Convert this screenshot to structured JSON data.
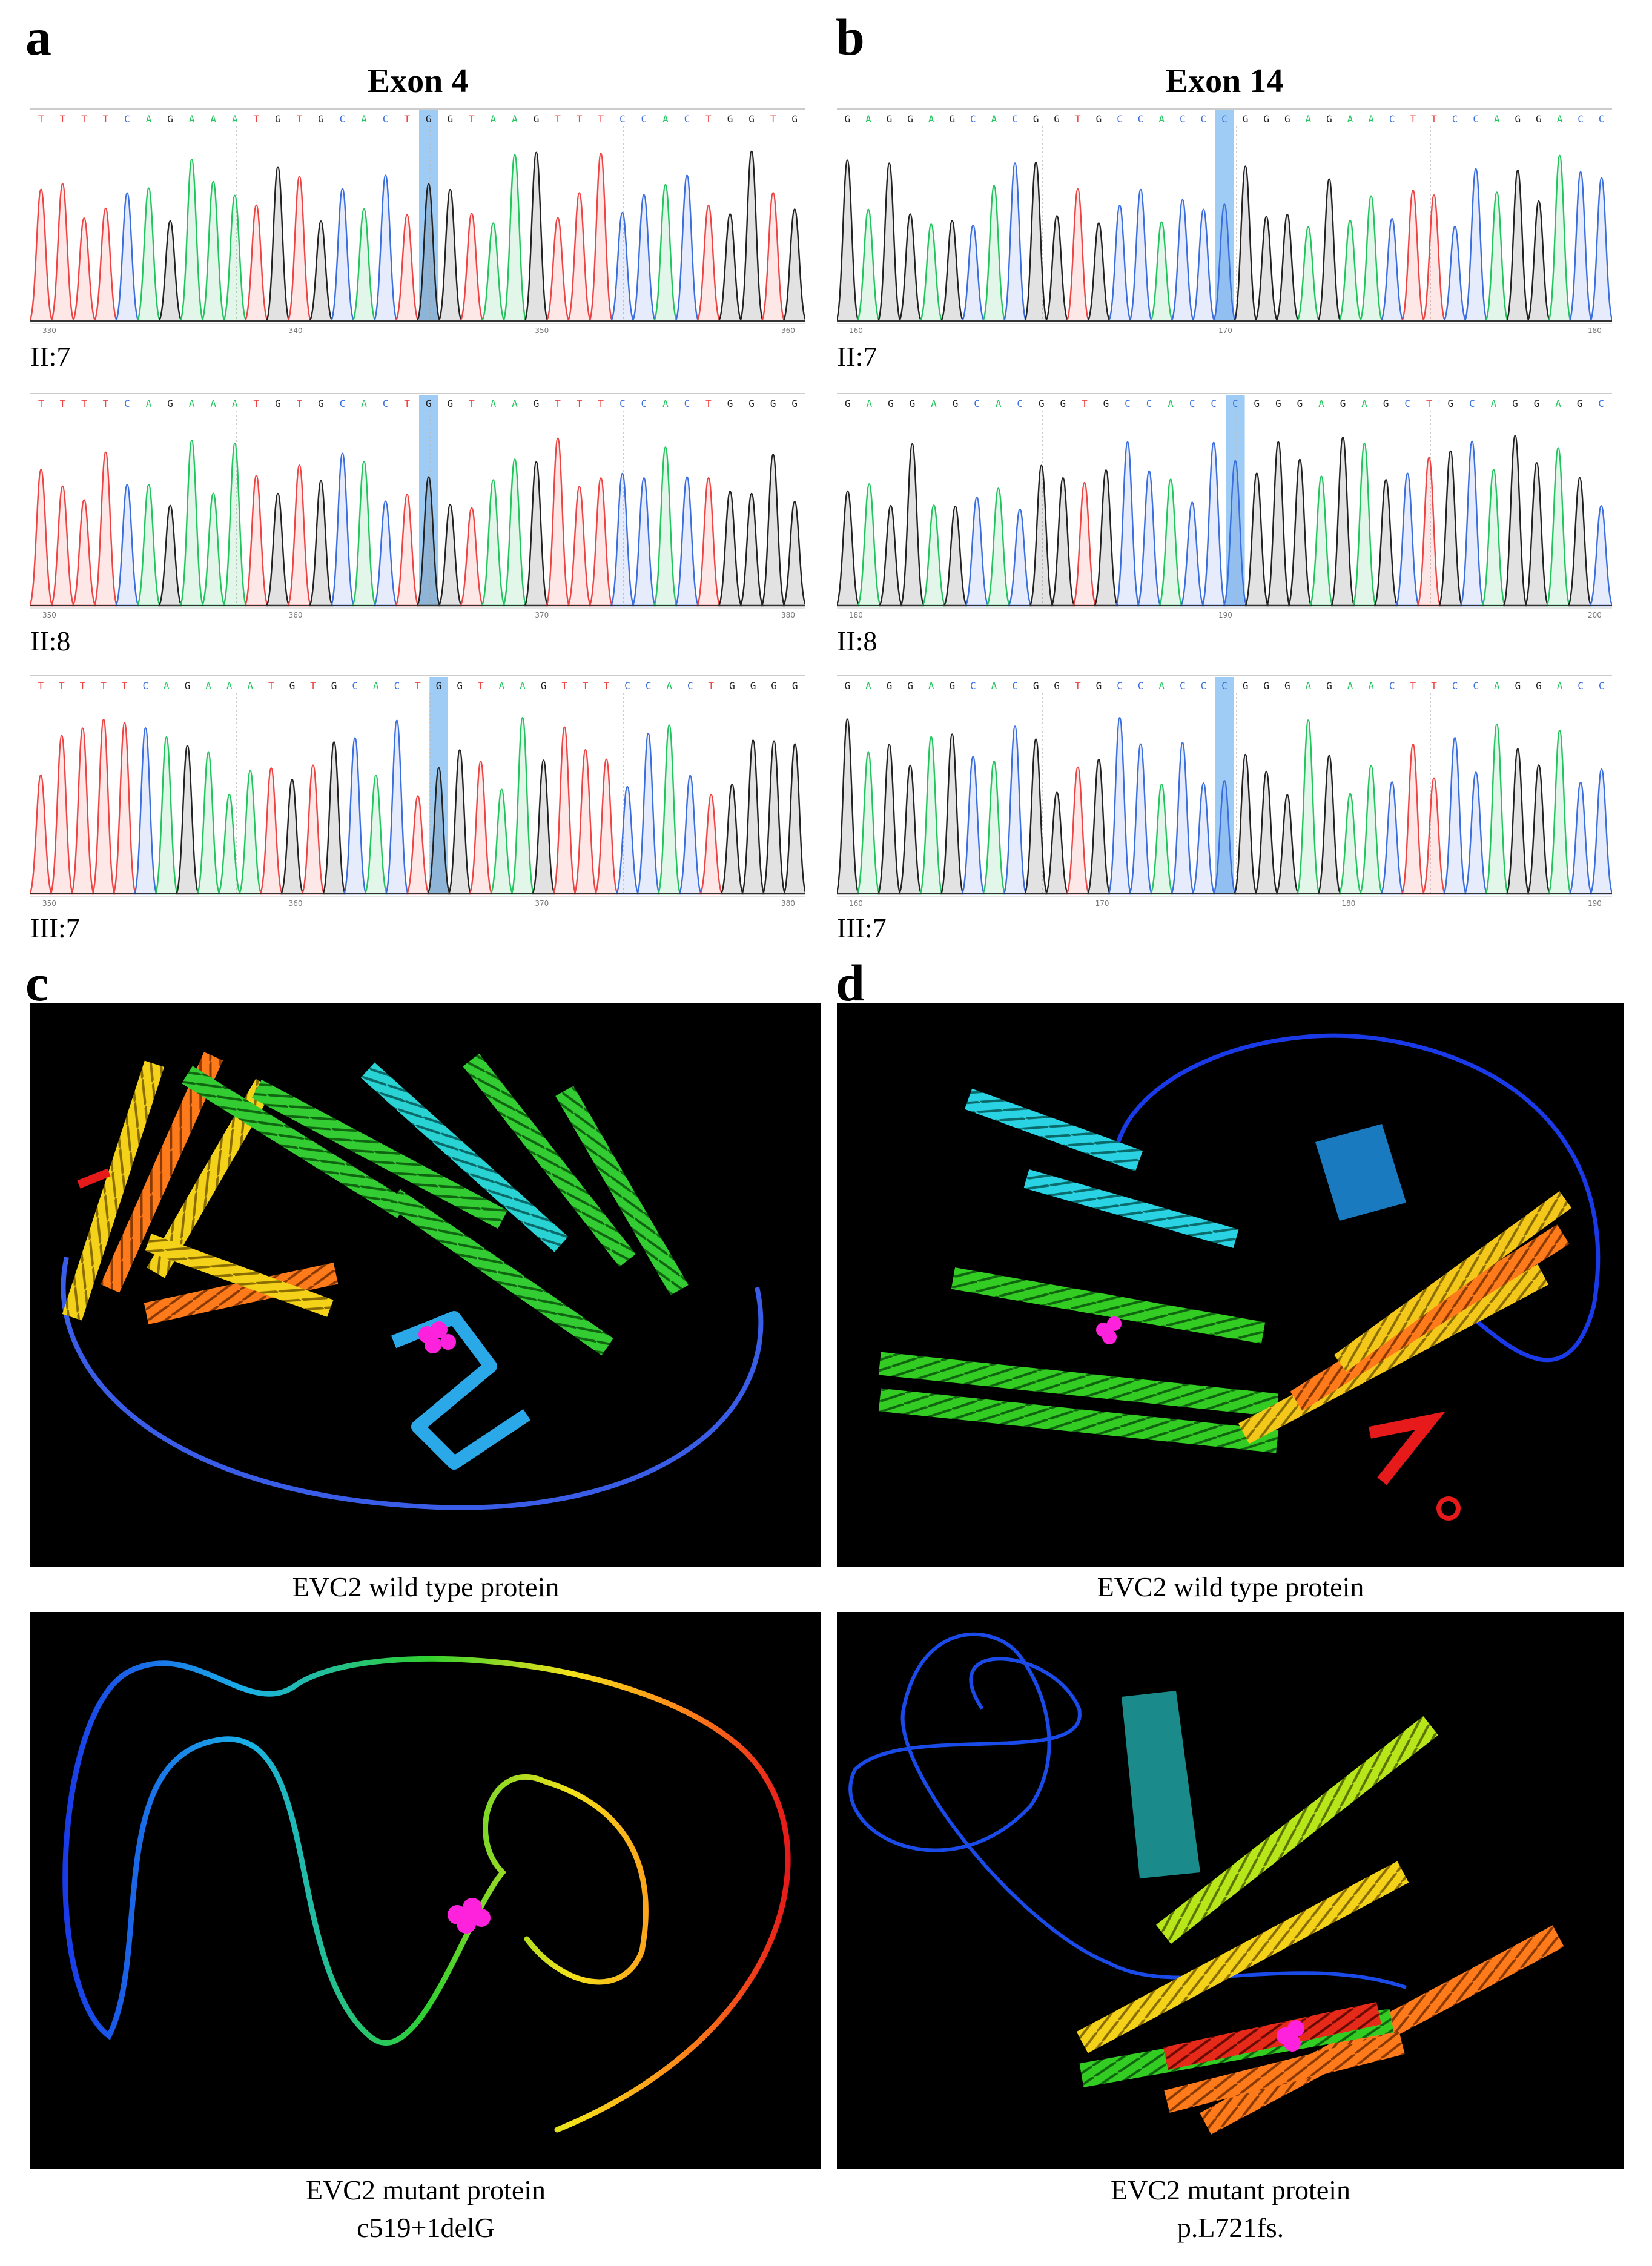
{
  "panels": {
    "a": {
      "letter": "a",
      "title": "Exon 4",
      "traces": [
        {
          "label": "II:7",
          "bases": "TTTTCAGAAATGTGCACTGGTAAGTTTCCACTGGTG",
          "highlight_index": 18,
          "ticks": [
            "330",
            "340",
            "350",
            "360"
          ]
        },
        {
          "label": "II:8",
          "bases": "TTTTCAGAAATGTGCACTGGTAAGTTTCCACTGGGG",
          "highlight_index": 18,
          "ticks": [
            "350",
            "360",
            "370",
            "380"
          ]
        },
        {
          "label": "III:7",
          "bases": "TTTTTCAGAAATGTGCACTGGTAAGTTTCCACTGGGG",
          "highlight_index": 19,
          "ticks": [
            "350",
            "360",
            "370",
            "380"
          ]
        }
      ]
    },
    "b": {
      "letter": "b",
      "title": "Exon 14",
      "traces": [
        {
          "label": "II:7",
          "bases": "GAGGAGCACGGTGCCACCCGGGAGAACTTCCAGGACC",
          "highlight_index": 18,
          "ticks": [
            "160",
            "170",
            "180"
          ]
        },
        {
          "label": "II:8",
          "bases": "GAGGAGCACGGTGCCACCCGGGAGAGCTGCAGGAGC",
          "highlight_index": 18,
          "ticks": [
            "180",
            "190",
            "200"
          ]
        },
        {
          "label": "III:7",
          "bases": "GAGGAGCACGGTGCCACCCGGGAGAACTTCCAGGACC",
          "highlight_index": 18,
          "ticks": [
            "160",
            "170",
            "180",
            "190"
          ]
        }
      ]
    },
    "c": {
      "letter": "c",
      "captions": {
        "top": "EVC2 wild type protein",
        "bottom_line1": "EVC2 mutant protein",
        "bottom_line2": "c519+1delG"
      }
    },
    "d": {
      "letter": "d",
      "captions": {
        "top": "EVC2 wild type protein",
        "bottom_line1": "EVC2 mutant protein",
        "bottom_line2": "p.L721fs."
      }
    }
  },
  "colors": {
    "A": "#22c55e",
    "C": "#3b6fe0",
    "G": "#222222",
    "T": "#ef4444",
    "highlight": "#8ec3f2",
    "mutation_atom": "#ff22dd"
  }
}
